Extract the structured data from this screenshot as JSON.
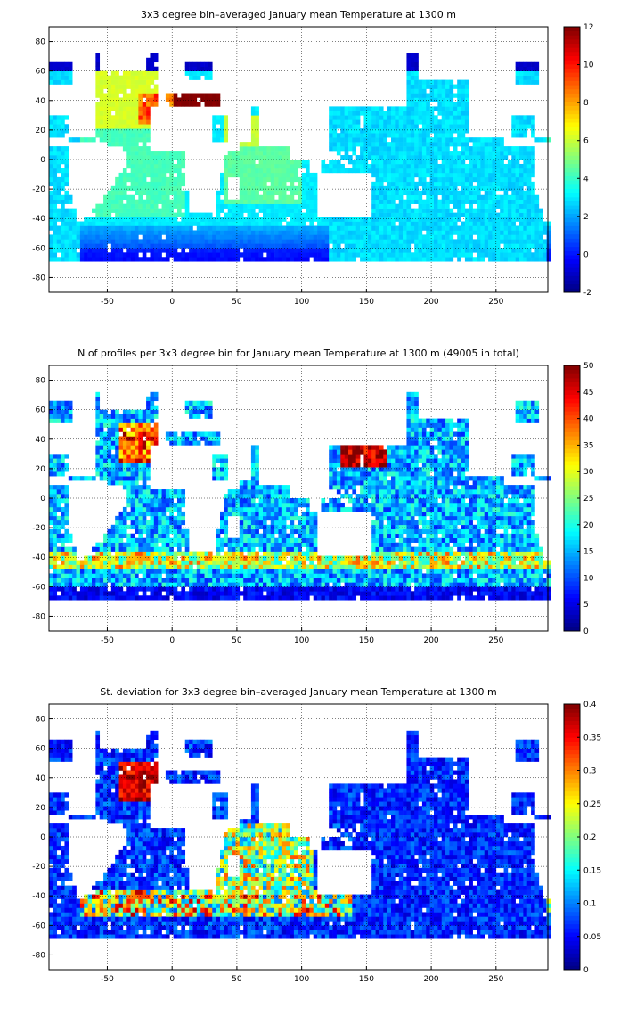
{
  "chart_data": [
    {
      "type": "heatmap",
      "title": "3x3 degree bin–averaged January mean Temperature at 1300 m",
      "xlabel": "",
      "ylabel": "",
      "xlim": [
        -95,
        290
      ],
      "ylim": [
        -90,
        90
      ],
      "xticks": [
        -50,
        0,
        50,
        100,
        150,
        200,
        250
      ],
      "yticks": [
        -80,
        -60,
        -40,
        -20,
        0,
        20,
        40,
        60,
        80
      ],
      "colorbar": {
        "min": -2,
        "max": 12,
        "ticks": [
          -2,
          0,
          2,
          4,
          6,
          8,
          10,
          12
        ]
      },
      "colormap": "jet",
      "grid": true,
      "bin_deg": 3,
      "field": "temperature"
    },
    {
      "type": "heatmap",
      "title": "N of profiles per 3x3 degree bin for January mean Temperature at 1300 m (49005 in total)",
      "xlabel": "",
      "ylabel": "",
      "xlim": [
        -95,
        290
      ],
      "ylim": [
        -90,
        90
      ],
      "xticks": [
        -50,
        0,
        50,
        100,
        150,
        200,
        250
      ],
      "yticks": [
        -80,
        -60,
        -40,
        -20,
        0,
        20,
        40,
        60,
        80
      ],
      "colorbar": {
        "min": 0,
        "max": 50,
        "ticks": [
          0,
          5,
          10,
          15,
          20,
          25,
          30,
          35,
          40,
          45,
          50
        ]
      },
      "colormap": "jet",
      "grid": true,
      "bin_deg": 3,
      "field": "count"
    },
    {
      "type": "heatmap",
      "title": "St. deviation for 3x3 degree bin–averaged January mean Temperature at 1300 m",
      "xlabel": "",
      "ylabel": "",
      "xlim": [
        -95,
        290
      ],
      "ylim": [
        -90,
        90
      ],
      "xticks": [
        -50,
        0,
        50,
        100,
        150,
        200,
        250
      ],
      "yticks": [
        -80,
        -60,
        -40,
        -20,
        0,
        20,
        40,
        60,
        80
      ],
      "colorbar": {
        "min": 0,
        "max": 0.4,
        "ticks": [
          0,
          0.05,
          0.1,
          0.15,
          0.2,
          0.25,
          0.3,
          0.35,
          0.4
        ]
      },
      "colormap": "jet",
      "grid": true,
      "bin_deg": 3,
      "field": "stdev"
    }
  ]
}
